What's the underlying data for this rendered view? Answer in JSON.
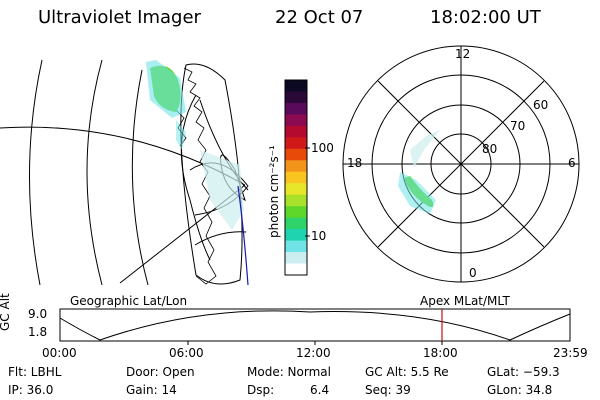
{
  "header": {
    "title": "Ultraviolet Imager",
    "date": "22 Oct 07",
    "time": "18:02:00 UT"
  },
  "colorbar": {
    "label": "photon cm⁻²s⁻¹",
    "ticks": [
      "100",
      "10"
    ],
    "colors": [
      "#0b0a22",
      "#2a0838",
      "#5a0a5a",
      "#8c0a52",
      "#b40a30",
      "#d01818",
      "#e84a0a",
      "#f3941a",
      "#f7c51e",
      "#e8e62a",
      "#a8e02a",
      "#5ed62a",
      "#2ed36a",
      "#1fd3b0",
      "#6fe3e6",
      "#cdeef0",
      "#ffffff"
    ]
  },
  "polar": {
    "mlt_labels": {
      "top": "12",
      "left": "18",
      "right": "6",
      "bottom": "0"
    },
    "lat_labels": [
      "60",
      "70",
      "80"
    ]
  },
  "timeline": {
    "ylabel": "GC Alt",
    "ymax": "9.0",
    "ymin": "1.8",
    "left_caption": "Geographic Lat/Lon",
    "right_caption": "Apex MLat/MLT",
    "ticks": [
      "00:00",
      "06:00",
      "12:00",
      "18:00",
      "23:59"
    ],
    "current_marker_color": "#c01010"
  },
  "info": {
    "flt": "Flt: LBHL",
    "ip": "IP: 36.0",
    "door": "Door: Open",
    "gain": "Gain: 14",
    "mode": "Mode: Normal",
    "dsp_label": "Dsp:",
    "dsp_value": "6.4",
    "gcalt": "GC Alt: 5.5 Re",
    "seq": "Seq: 39",
    "glat": "GLat: −59.3",
    "glon": "GLon:  34.8"
  }
}
